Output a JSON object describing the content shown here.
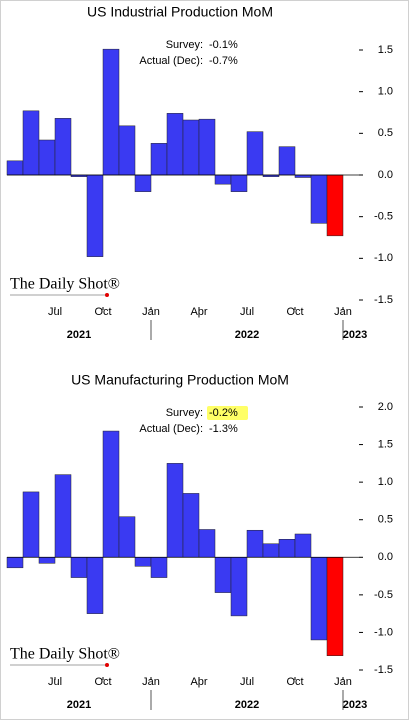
{
  "chart_data": [
    {
      "type": "bar",
      "title": "US Industrial Production MoM",
      "annotations": [
        {
          "label": "Survey:",
          "value": "-0.1%"
        },
        {
          "label": "Actual (Dec):",
          "value": "-0.7%"
        }
      ],
      "values": [
        0.17,
        0.77,
        0.42,
        0.68,
        -0.02,
        -0.98,
        1.51,
        0.59,
        -0.2,
        0.38,
        0.74,
        0.66,
        0.67,
        -0.11,
        -0.2,
        0.52,
        -0.02,
        0.34,
        -0.03,
        -0.58,
        -0.73
      ],
      "colors": [
        "#3a3af2",
        "#3a3af2",
        "#3a3af2",
        "#3a3af2",
        "#3a3af2",
        "#3a3af2",
        "#3a3af2",
        "#3a3af2",
        "#3a3af2",
        "#3a3af2",
        "#3a3af2",
        "#3a3af2",
        "#3a3af2",
        "#3a3af2",
        "#3a3af2",
        "#3a3af2",
        "#3a3af2",
        "#3a3af2",
        "#3a3af2",
        "#3a3af2",
        "#ff0000"
      ],
      "ylim": [
        -1.5,
        1.5
      ],
      "yticks": [
        {
          "value": 1.5,
          "label": "1.5"
        },
        {
          "value": 1,
          "label": "1.0"
        },
        {
          "value": 0.5,
          "label": "0.5"
        },
        {
          "value": 0,
          "label": "0.0"
        },
        {
          "value": -0.5,
          "label": "-0.5"
        },
        {
          "value": -1,
          "label": "-1.0"
        },
        {
          "value": -1.5,
          "label": "-1.5"
        }
      ],
      "xlim": [
        0,
        21
      ],
      "xticks": [
        {
          "value": 3,
          "label": "Jul"
        },
        {
          "value": 6,
          "label": "Oct"
        },
        {
          "value": 9,
          "label": "Jan"
        },
        {
          "value": 12,
          "label": "Apr"
        },
        {
          "value": 15,
          "label": "Jul"
        },
        {
          "value": 18,
          "label": "Oct"
        },
        {
          "value": 21,
          "label": "Jan"
        }
      ],
      "year_groups": [
        {
          "label": "2021",
          "from": 0,
          "to": 9
        },
        {
          "label": "2022",
          "from": 9,
          "to": 21
        },
        {
          "label": "2023",
          "from": 21,
          "to": 22.5
        }
      ],
      "source": "The Daily Shot®"
    },
    {
      "type": "bar",
      "title": "US Manufacturing Production MoM",
      "annotations": [
        {
          "label": "Survey:",
          "value": "-0.2%",
          "highlight": true
        },
        {
          "label": "Actual (Dec):",
          "value": "-1.3%"
        }
      ],
      "values": [
        -0.14,
        0.87,
        -0.08,
        1.1,
        -0.27,
        -0.75,
        1.68,
        0.54,
        -0.12,
        -0.27,
        1.25,
        0.85,
        0.37,
        -0.47,
        -0.78,
        0.36,
        0.18,
        0.24,
        0.31,
        -1.1,
        -1.31
      ],
      "colors": [
        "#3a3af2",
        "#3a3af2",
        "#3a3af2",
        "#3a3af2",
        "#3a3af2",
        "#3a3af2",
        "#3a3af2",
        "#3a3af2",
        "#3a3af2",
        "#3a3af2",
        "#3a3af2",
        "#3a3af2",
        "#3a3af2",
        "#3a3af2",
        "#3a3af2",
        "#3a3af2",
        "#3a3af2",
        "#3a3af2",
        "#3a3af2",
        "#3a3af2",
        "#ff0000"
      ],
      "ylim": [
        -1.5,
        2
      ],
      "yticks": [
        {
          "value": 2,
          "label": "2.0"
        },
        {
          "value": 1.5,
          "label": "1.5"
        },
        {
          "value": 1,
          "label": "1.0"
        },
        {
          "value": 0.5,
          "label": "0.5"
        },
        {
          "value": 0,
          "label": "0.0"
        },
        {
          "value": -0.5,
          "label": "-0.5"
        },
        {
          "value": -1,
          "label": "-1.0"
        },
        {
          "value": -1.5,
          "label": "-1.5"
        }
      ],
      "xlim": [
        0,
        21
      ],
      "xticks": [
        {
          "value": 3,
          "label": "Jul"
        },
        {
          "value": 6,
          "label": "Oct"
        },
        {
          "value": 9,
          "label": "Jan"
        },
        {
          "value": 12,
          "label": "Apr"
        },
        {
          "value": 15,
          "label": "Jul"
        },
        {
          "value": 18,
          "label": "Oct"
        },
        {
          "value": 21,
          "label": "Jan"
        }
      ],
      "year_groups": [
        {
          "label": "2021",
          "from": 0,
          "to": 9
        },
        {
          "label": "2022",
          "from": 9,
          "to": 21
        },
        {
          "label": "2023",
          "from": 21,
          "to": 22.5
        }
      ],
      "source": "The Daily Shot®"
    }
  ]
}
